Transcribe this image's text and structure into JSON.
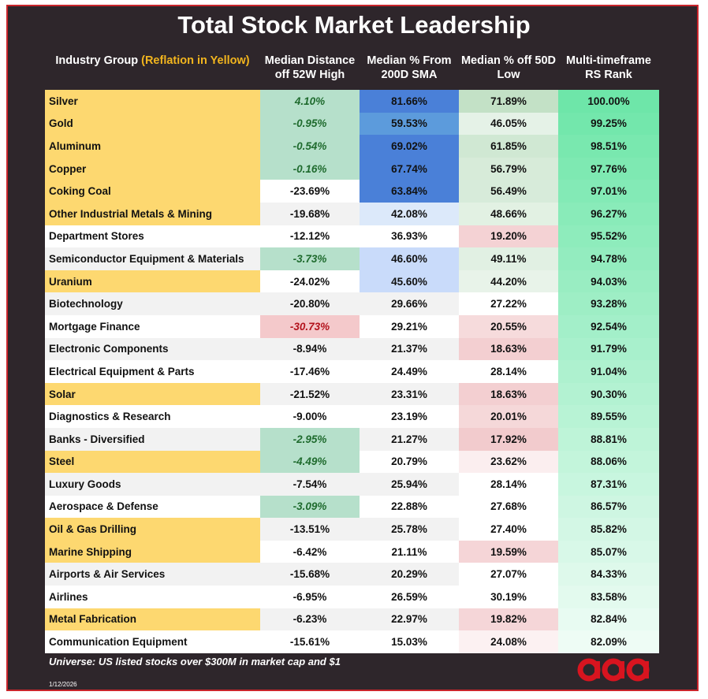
{
  "title": "Total Stock Market Leadership",
  "headers": {
    "industry_prefix": "Industry Group ",
    "industry_highlight": "(Reflation in Yellow)",
    "dist_52w": "Median Distance off 52W High",
    "pct_200d": "Median % From 200D SMA",
    "pct_50d": "Median % off 50D Low",
    "rs_rank": "Multi-timeframe RS Rank"
  },
  "colors": {
    "frame_bg": "#2e262b",
    "border": "#c9252c",
    "highlight_text": "#f2b51e",
    "yellow": "#fdd870",
    "green_light": "#b6e0cb",
    "red_light": "#f4c9cb",
    "blue_dark": "#4a80d8",
    "blue_mid": "#5c9bdc",
    "blue_light": "#c9dbfa",
    "blue_pale": "#dce9fa",
    "rs_green": "#6ee6a9",
    "logo": "#d8141f"
  },
  "chart_data": {
    "type": "table",
    "title": "Total Stock Market Leadership",
    "columns": [
      "Industry Group (Reflation in Yellow)",
      "Median Distance off 52W High",
      "Median % From 200D SMA",
      "Median % off 50D Low",
      "Multi-timeframe RS Rank"
    ],
    "rows": [
      {
        "group": "Silver",
        "reflation": true,
        "dist_52w": "4.10%",
        "d_style": "green",
        "pct_200d": "81.66%",
        "b_style": "dark",
        "pct_50d": "71.89%",
        "rs": "100.00%"
      },
      {
        "group": "Gold",
        "reflation": true,
        "dist_52w": "-0.95%",
        "d_style": "green",
        "pct_200d": "59.53%",
        "b_style": "mid",
        "pct_50d": "46.05%",
        "rs": "99.25%"
      },
      {
        "group": "Aluminum",
        "reflation": true,
        "dist_52w": "-0.54%",
        "d_style": "green",
        "pct_200d": "69.02%",
        "b_style": "dark",
        "pct_50d": "61.85%",
        "rs": "98.51%"
      },
      {
        "group": "Copper",
        "reflation": true,
        "dist_52w": "-0.16%",
        "d_style": "green",
        "pct_200d": "67.74%",
        "b_style": "dark",
        "pct_50d": "56.79%",
        "rs": "97.76%"
      },
      {
        "group": "Coking Coal",
        "reflation": true,
        "dist_52w": "-23.69%",
        "d_style": "",
        "pct_200d": "63.84%",
        "b_style": "dark",
        "pct_50d": "56.49%",
        "rs": "97.01%"
      },
      {
        "group": "Other Industrial Metals & Mining",
        "reflation": true,
        "dist_52w": "-19.68%",
        "d_style": "",
        "pct_200d": "42.08%",
        "b_style": "pale",
        "pct_50d": "48.66%",
        "rs": "96.27%"
      },
      {
        "group": "Department Stores",
        "reflation": false,
        "dist_52w": "-12.12%",
        "d_style": "",
        "pct_200d": "36.93%",
        "b_style": "",
        "pct_50d": "19.20%",
        "rs": "95.52%"
      },
      {
        "group": "Semiconductor Equipment & Materials",
        "reflation": false,
        "dist_52w": "-3.73%",
        "d_style": "green",
        "pct_200d": "46.60%",
        "b_style": "light",
        "pct_50d": "49.11%",
        "rs": "94.78%"
      },
      {
        "group": "Uranium",
        "reflation": true,
        "dist_52w": "-24.02%",
        "d_style": "",
        "pct_200d": "45.60%",
        "b_style": "light",
        "pct_50d": "44.20%",
        "rs": "94.03%"
      },
      {
        "group": "Biotechnology",
        "reflation": false,
        "dist_52w": "-20.80%",
        "d_style": "",
        "pct_200d": "29.66%",
        "b_style": "",
        "pct_50d": "27.22%",
        "rs": "93.28%"
      },
      {
        "group": "Mortgage Finance",
        "reflation": false,
        "dist_52w": "-30.73%",
        "d_style": "red",
        "pct_200d": "29.21%",
        "b_style": "",
        "pct_50d": "20.55%",
        "rs": "92.54%"
      },
      {
        "group": "Electronic Components",
        "reflation": false,
        "dist_52w": "-8.94%",
        "d_style": "",
        "pct_200d": "21.37%",
        "b_style": "",
        "pct_50d": "18.63%",
        "rs": "91.79%"
      },
      {
        "group": "Electrical Equipment & Parts",
        "reflation": false,
        "dist_52w": "-17.46%",
        "d_style": "",
        "pct_200d": "24.49%",
        "b_style": "",
        "pct_50d": "28.14%",
        "rs": "91.04%"
      },
      {
        "group": "Solar",
        "reflation": true,
        "dist_52w": "-21.52%",
        "d_style": "",
        "pct_200d": "23.31%",
        "b_style": "",
        "pct_50d": "18.63%",
        "rs": "90.30%"
      },
      {
        "group": "Diagnostics & Research",
        "reflation": false,
        "dist_52w": "-9.00%",
        "d_style": "",
        "pct_200d": "23.19%",
        "b_style": "",
        "pct_50d": "20.01%",
        "rs": "89.55%"
      },
      {
        "group": "Banks - Diversified",
        "reflation": false,
        "dist_52w": "-2.95%",
        "d_style": "green",
        "pct_200d": "21.27%",
        "b_style": "",
        "pct_50d": "17.92%",
        "rs": "88.81%"
      },
      {
        "group": "Steel",
        "reflation": true,
        "dist_52w": "-4.49%",
        "d_style": "green",
        "pct_200d": "20.79%",
        "b_style": "",
        "pct_50d": "23.62%",
        "rs": "88.06%"
      },
      {
        "group": "Luxury Goods",
        "reflation": false,
        "dist_52w": "-7.54%",
        "d_style": "",
        "pct_200d": "25.94%",
        "b_style": "",
        "pct_50d": "28.14%",
        "rs": "87.31%"
      },
      {
        "group": "Aerospace & Defense",
        "reflation": false,
        "dist_52w": "-3.09%",
        "d_style": "green",
        "pct_200d": "22.88%",
        "b_style": "",
        "pct_50d": "27.68%",
        "rs": "86.57%"
      },
      {
        "group": "Oil & Gas Drilling",
        "reflation": true,
        "dist_52w": "-13.51%",
        "d_style": "",
        "pct_200d": "25.78%",
        "b_style": "",
        "pct_50d": "27.40%",
        "rs": "85.82%"
      },
      {
        "group": "Marine Shipping",
        "reflation": true,
        "dist_52w": "-6.42%",
        "d_style": "",
        "pct_200d": "21.11%",
        "b_style": "",
        "pct_50d": "19.59%",
        "rs": "85.07%"
      },
      {
        "group": "Airports & Air Services",
        "reflation": false,
        "dist_52w": "-15.68%",
        "d_style": "",
        "pct_200d": "20.29%",
        "b_style": "",
        "pct_50d": "27.07%",
        "rs": "84.33%"
      },
      {
        "group": "Airlines",
        "reflation": false,
        "dist_52w": "-6.95%",
        "d_style": "",
        "pct_200d": "26.59%",
        "b_style": "",
        "pct_50d": "30.19%",
        "rs": "83.58%"
      },
      {
        "group": "Metal Fabrication",
        "reflation": true,
        "dist_52w": "-6.23%",
        "d_style": "",
        "pct_200d": "22.97%",
        "b_style": "",
        "pct_50d": "19.82%",
        "rs": "82.84%"
      },
      {
        "group": "Communication Equipment",
        "reflation": false,
        "dist_52w": "-15.61%",
        "d_style": "",
        "pct_200d": "15.03%",
        "b_style": "",
        "pct_50d": "24.08%",
        "rs": "82.09%"
      }
    ]
  },
  "footnote": "Universe: US listed stocks over $300M in market cap and $1",
  "date": "1/12/2026",
  "logo_text": "aaa"
}
